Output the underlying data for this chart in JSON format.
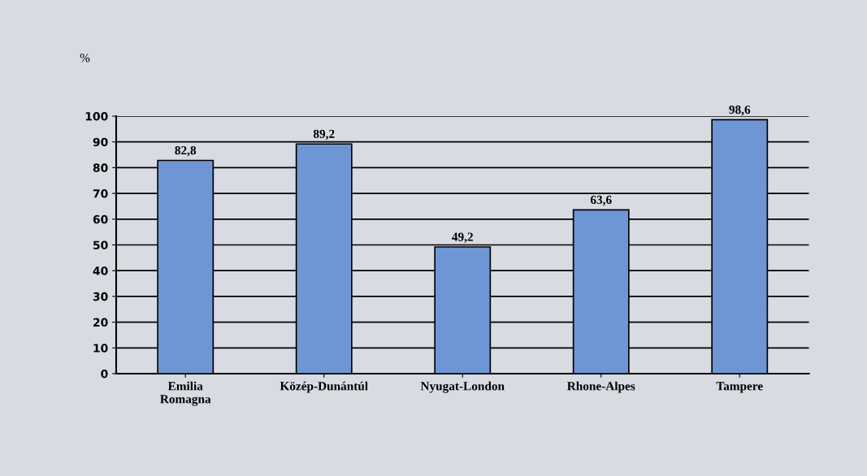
{
  "chart_data": {
    "type": "bar",
    "ylabel": "%",
    "categories": [
      "Emilia\nRomagna",
      "Közép-Dunántúl",
      "Nyugat-London",
      "Rhone-Alpes",
      "Tampere"
    ],
    "values": [
      82.8,
      89.2,
      49.2,
      63.6,
      98.6
    ],
    "value_labels": [
      "82,8",
      "89,2",
      "49,2",
      "63,6",
      "98,6"
    ],
    "color": "#6f96d4",
    "ylim": [
      0,
      100
    ],
    "yticks": [
      0,
      10,
      20,
      30,
      40,
      50,
      60,
      70,
      80,
      90,
      100
    ],
    "grid": "y"
  }
}
